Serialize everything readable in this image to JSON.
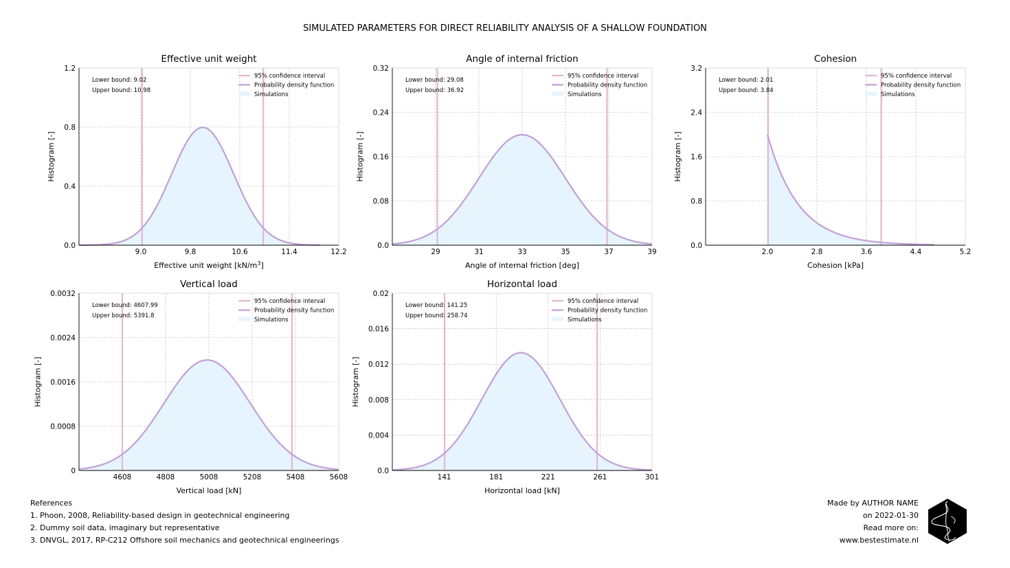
{
  "figure_title": "SIMULATED PARAMETERS FOR DIRECT RELIABILITY ANALYSIS OF A SHALLOW FOUNDATION",
  "colors": {
    "ci_line": "#e2b6d6",
    "pdf_line": "#c29fd7",
    "hist_fill": "#e6f4fd",
    "grid": "#b0b0b0"
  },
  "legend": {
    "ci": "95% confidence interval",
    "pdf": "Probability density function",
    "sim": "Simulations"
  },
  "chart_data": [
    {
      "type": "area",
      "title": "Effective unit weight",
      "xlabel": "Effective unit weight [kN/m",
      "xlabel_sup": "3",
      "xlabel_end": "]",
      "ylabel": "Histogram [-]",
      "xlim": [
        8.0,
        12.2
      ],
      "ylim": [
        0,
        1.2
      ],
      "xticks": [
        "9.0",
        "9.8",
        "10.6",
        "11.4",
        "12.2"
      ],
      "yticks": [
        "0.0",
        "0.4",
        "0.8",
        "1.2"
      ],
      "distribution": "normal",
      "mean": 10.0,
      "std": 0.5,
      "x_range": [
        8.0,
        11.9
      ],
      "ci_lower": 9.02,
      "ci_upper": 10.98,
      "lower_text": "Lower bound: 9.02",
      "upper_text": "Upper bound: 10.98"
    },
    {
      "type": "area",
      "title": "Angle of internal friction",
      "xlabel": "Angle of internal friction [deg]",
      "ylabel": "Histogram [-]",
      "xlim": [
        27,
        39
      ],
      "ylim": [
        0,
        0.32
      ],
      "xticks": [
        "29",
        "31",
        "33",
        "35",
        "37",
        "39"
      ],
      "yticks": [
        "0.0",
        "0.08",
        "0.16",
        "0.24",
        "0.32"
      ],
      "distribution": "normal",
      "mean": 33.0,
      "std": 2.0,
      "x_range": [
        27,
        39
      ],
      "ci_lower": 29.08,
      "ci_upper": 36.92,
      "lower_text": "Lower bound: 29.08",
      "upper_text": "Upper bound: 36.92"
    },
    {
      "type": "area",
      "title": "Cohesion",
      "xlabel": "Cohesion [kPa]",
      "ylabel": "Histogram [-]",
      "xlim": [
        1.0,
        5.2
      ],
      "ylim": [
        0,
        3.2
      ],
      "xticks": [
        "2.0",
        "2.8",
        "3.6",
        "4.4",
        "5.2"
      ],
      "yticks": [
        "0.0",
        "0.8",
        "1.6",
        "2.4",
        "3.2"
      ],
      "distribution": "exponential",
      "loc": 2.0,
      "rate": 2.0,
      "x_range": [
        2.0,
        4.7
      ],
      "ci_lower": 2.01,
      "ci_upper": 3.84,
      "lower_text": "Lower bound: 2.01",
      "upper_text": "Upper bound: 3.84"
    },
    {
      "type": "area",
      "title": "Vertical load",
      "xlabel": "Vertical load [kN]",
      "ylabel": "Histogram [-]",
      "xlim": [
        4408,
        5608
      ],
      "ylim": [
        0,
        0.0032
      ],
      "xticks": [
        "4608",
        "4808",
        "5008",
        "5208",
        "5408",
        "5608"
      ],
      "yticks": [
        "0",
        "0.0008",
        "0.0016",
        "0.0024",
        "0.0032"
      ],
      "distribution": "normal",
      "mean": 5000,
      "std": 200,
      "x_range": [
        4408,
        5608
      ],
      "ci_lower": 4607.99,
      "ci_upper": 5391.8,
      "lower_text": "Lower bound: 4607.99",
      "upper_text": "Upper bound: 5391.8"
    },
    {
      "type": "area",
      "title": "Horizontal load",
      "xlabel": "Horizontal load [kN]",
      "ylabel": "Histogram [-]",
      "xlim": [
        101,
        301
      ],
      "ylim": [
        0,
        0.02
      ],
      "xticks": [
        "141",
        "181",
        "221",
        "261",
        "301"
      ],
      "yticks": [
        "0.0",
        "0.004",
        "0.008",
        "0.012",
        "0.016",
        "0.02"
      ],
      "distribution": "normal",
      "mean": 200,
      "std": 30,
      "x_range": [
        101,
        301
      ],
      "ci_lower": 141.25,
      "ci_upper": 258.74,
      "lower_text": "Lower bound: 141.25",
      "upper_text": "Upper bound: 258.74"
    }
  ],
  "references": {
    "heading": "References",
    "items": [
      "1. Phoon, 2008, Reliability-based design in geotechnical engineering",
      "2. Dummy soil data, imaginary but representative",
      "3. DNVGL, 2017, RP-C212 Offshore soil mechanics and geotechnical engineerings"
    ]
  },
  "credits": {
    "made_by": "Made by AUTHOR NAME",
    "date": "on 2022-01-30",
    "read_more": "Read more on:",
    "website": "www.bestestimate.nl"
  }
}
